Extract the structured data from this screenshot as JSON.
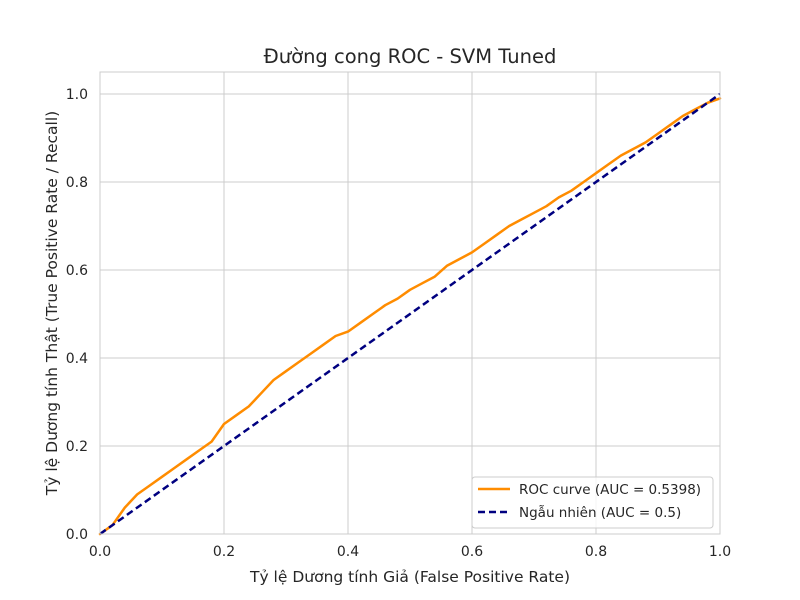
{
  "chart_data": {
    "type": "line",
    "title": "Đường cong ROC - SVM Tuned",
    "xlabel": "Tỷ lệ Dương tính Giả (False Positive Rate)",
    "ylabel": "Tỷ lệ Dương tính Thật (True Positive Rate / Recall)",
    "xlim": [
      0,
      1
    ],
    "ylim": [
      0,
      1.05
    ],
    "xticks": [
      "0.0",
      "0.2",
      "0.4",
      "0.6",
      "0.8",
      "1.0"
    ],
    "yticks": [
      "0.0",
      "0.2",
      "0.4",
      "0.6",
      "0.8",
      "1.0"
    ],
    "grid": true,
    "legend_position": "bottom-right",
    "series": [
      {
        "name": "ROC curve (AUC = 0.5398)",
        "color": "#ff8c00",
        "style": "solid",
        "x": [
          0.0,
          0.02,
          0.04,
          0.06,
          0.08,
          0.1,
          0.12,
          0.14,
          0.16,
          0.18,
          0.2,
          0.22,
          0.24,
          0.26,
          0.28,
          0.3,
          0.32,
          0.34,
          0.36,
          0.38,
          0.4,
          0.42,
          0.44,
          0.46,
          0.48,
          0.5,
          0.52,
          0.54,
          0.56,
          0.58,
          0.6,
          0.62,
          0.64,
          0.66,
          0.68,
          0.7,
          0.72,
          0.74,
          0.76,
          0.78,
          0.8,
          0.82,
          0.84,
          0.86,
          0.88,
          0.9,
          0.92,
          0.94,
          0.96,
          0.98,
          1.0
        ],
        "y": [
          0.0,
          0.02,
          0.06,
          0.09,
          0.11,
          0.13,
          0.15,
          0.17,
          0.19,
          0.21,
          0.25,
          0.27,
          0.29,
          0.32,
          0.35,
          0.37,
          0.39,
          0.41,
          0.43,
          0.45,
          0.46,
          0.48,
          0.5,
          0.52,
          0.535,
          0.555,
          0.57,
          0.585,
          0.61,
          0.625,
          0.64,
          0.66,
          0.68,
          0.7,
          0.715,
          0.73,
          0.745,
          0.765,
          0.78,
          0.8,
          0.82,
          0.84,
          0.86,
          0.875,
          0.89,
          0.91,
          0.93,
          0.95,
          0.965,
          0.98,
          0.99
        ]
      },
      {
        "name": "Ngẫu nhiên (AUC = 0.5)",
        "color": "#000080",
        "style": "dashed",
        "x": [
          0,
          1
        ],
        "y": [
          0,
          1
        ]
      }
    ]
  }
}
